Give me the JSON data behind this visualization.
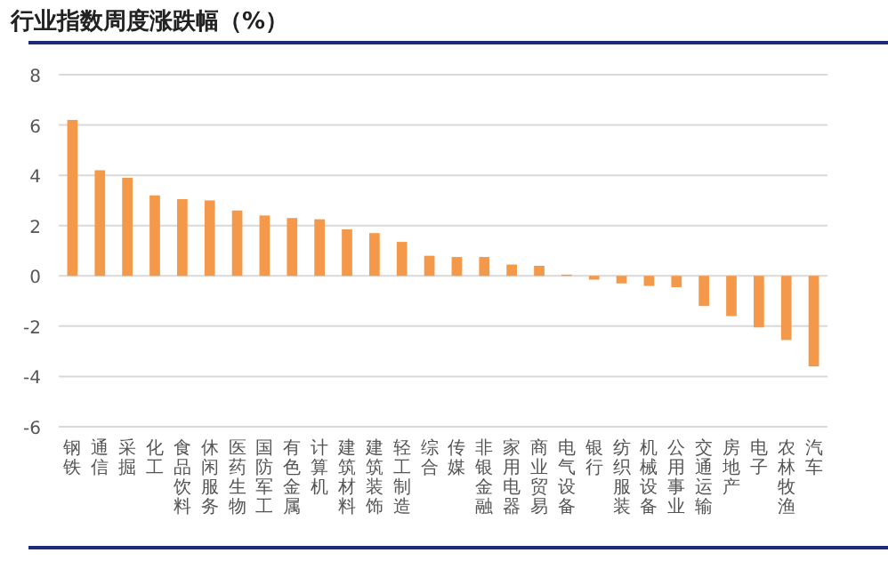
{
  "chart_data": {
    "type": "bar",
    "title": "行业指数周度涨跌幅（%）",
    "categories": [
      "钢铁",
      "通信",
      "采掘",
      "化工",
      "食品饮料",
      "休闲服务",
      "医药生物",
      "国防军工",
      "有色金属",
      "计算机",
      "建筑材料",
      "建筑装饰",
      "轻工制造",
      "综合",
      "传媒",
      "非银金融",
      "家用电器",
      "商业贸易",
      "电气设备",
      "银行",
      "纺织服装",
      "机械设备",
      "公用事业",
      "交通运输",
      "房地产",
      "电子",
      "农林牧渔",
      "汽车"
    ],
    "values": [
      6.2,
      4.2,
      3.9,
      3.2,
      3.05,
      3.0,
      2.6,
      2.4,
      2.3,
      2.25,
      1.85,
      1.7,
      1.35,
      0.8,
      0.75,
      0.75,
      0.45,
      0.4,
      0.05,
      -0.15,
      -0.3,
      -0.4,
      -0.45,
      -1.2,
      -1.6,
      -2.05,
      -2.55,
      -3.6
    ],
    "color": "#f4994a",
    "ylim": [
      -6,
      8
    ],
    "yticks": [
      -6,
      -4,
      -2,
      0,
      2,
      4,
      6,
      8
    ],
    "grid": "y"
  }
}
